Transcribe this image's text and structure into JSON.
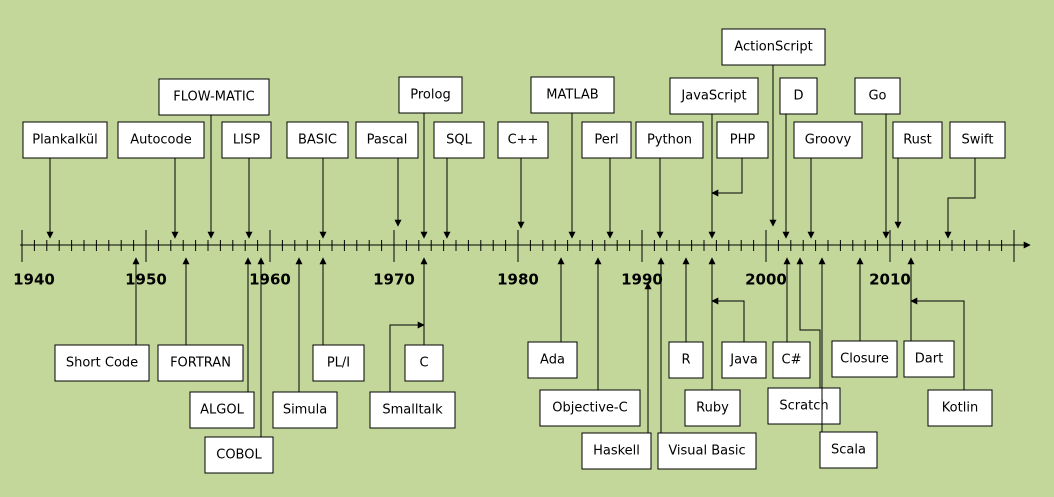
{
  "timeline": {
    "axis_labels": [
      "1940",
      "1950",
      "1960",
      "1970",
      "1980",
      "1990",
      "2000",
      "2010"
    ],
    "languages": [
      "Plankalkül",
      "Autocode",
      "FLOW-MATIC",
      "LISP",
      "BASIC",
      "Pascal",
      "Prolog",
      "SQL",
      "C++",
      "MATLAB",
      "Perl",
      "Python",
      "JavaScript",
      "PHP",
      "ActionScript",
      "D",
      "Groovy",
      "Go",
      "Rust",
      "Swift",
      "Short Code",
      "FORTRAN",
      "ALGOL",
      "COBOL",
      "Simula",
      "PL/I",
      "C",
      "Smalltalk",
      "Ada",
      "Objective-C",
      "Haskell",
      "Visual Basic",
      "R",
      "Java",
      "Ruby",
      "C#",
      "Scratch",
      "Scala",
      "Closure",
      "Dart",
      "Kotlin"
    ]
  }
}
